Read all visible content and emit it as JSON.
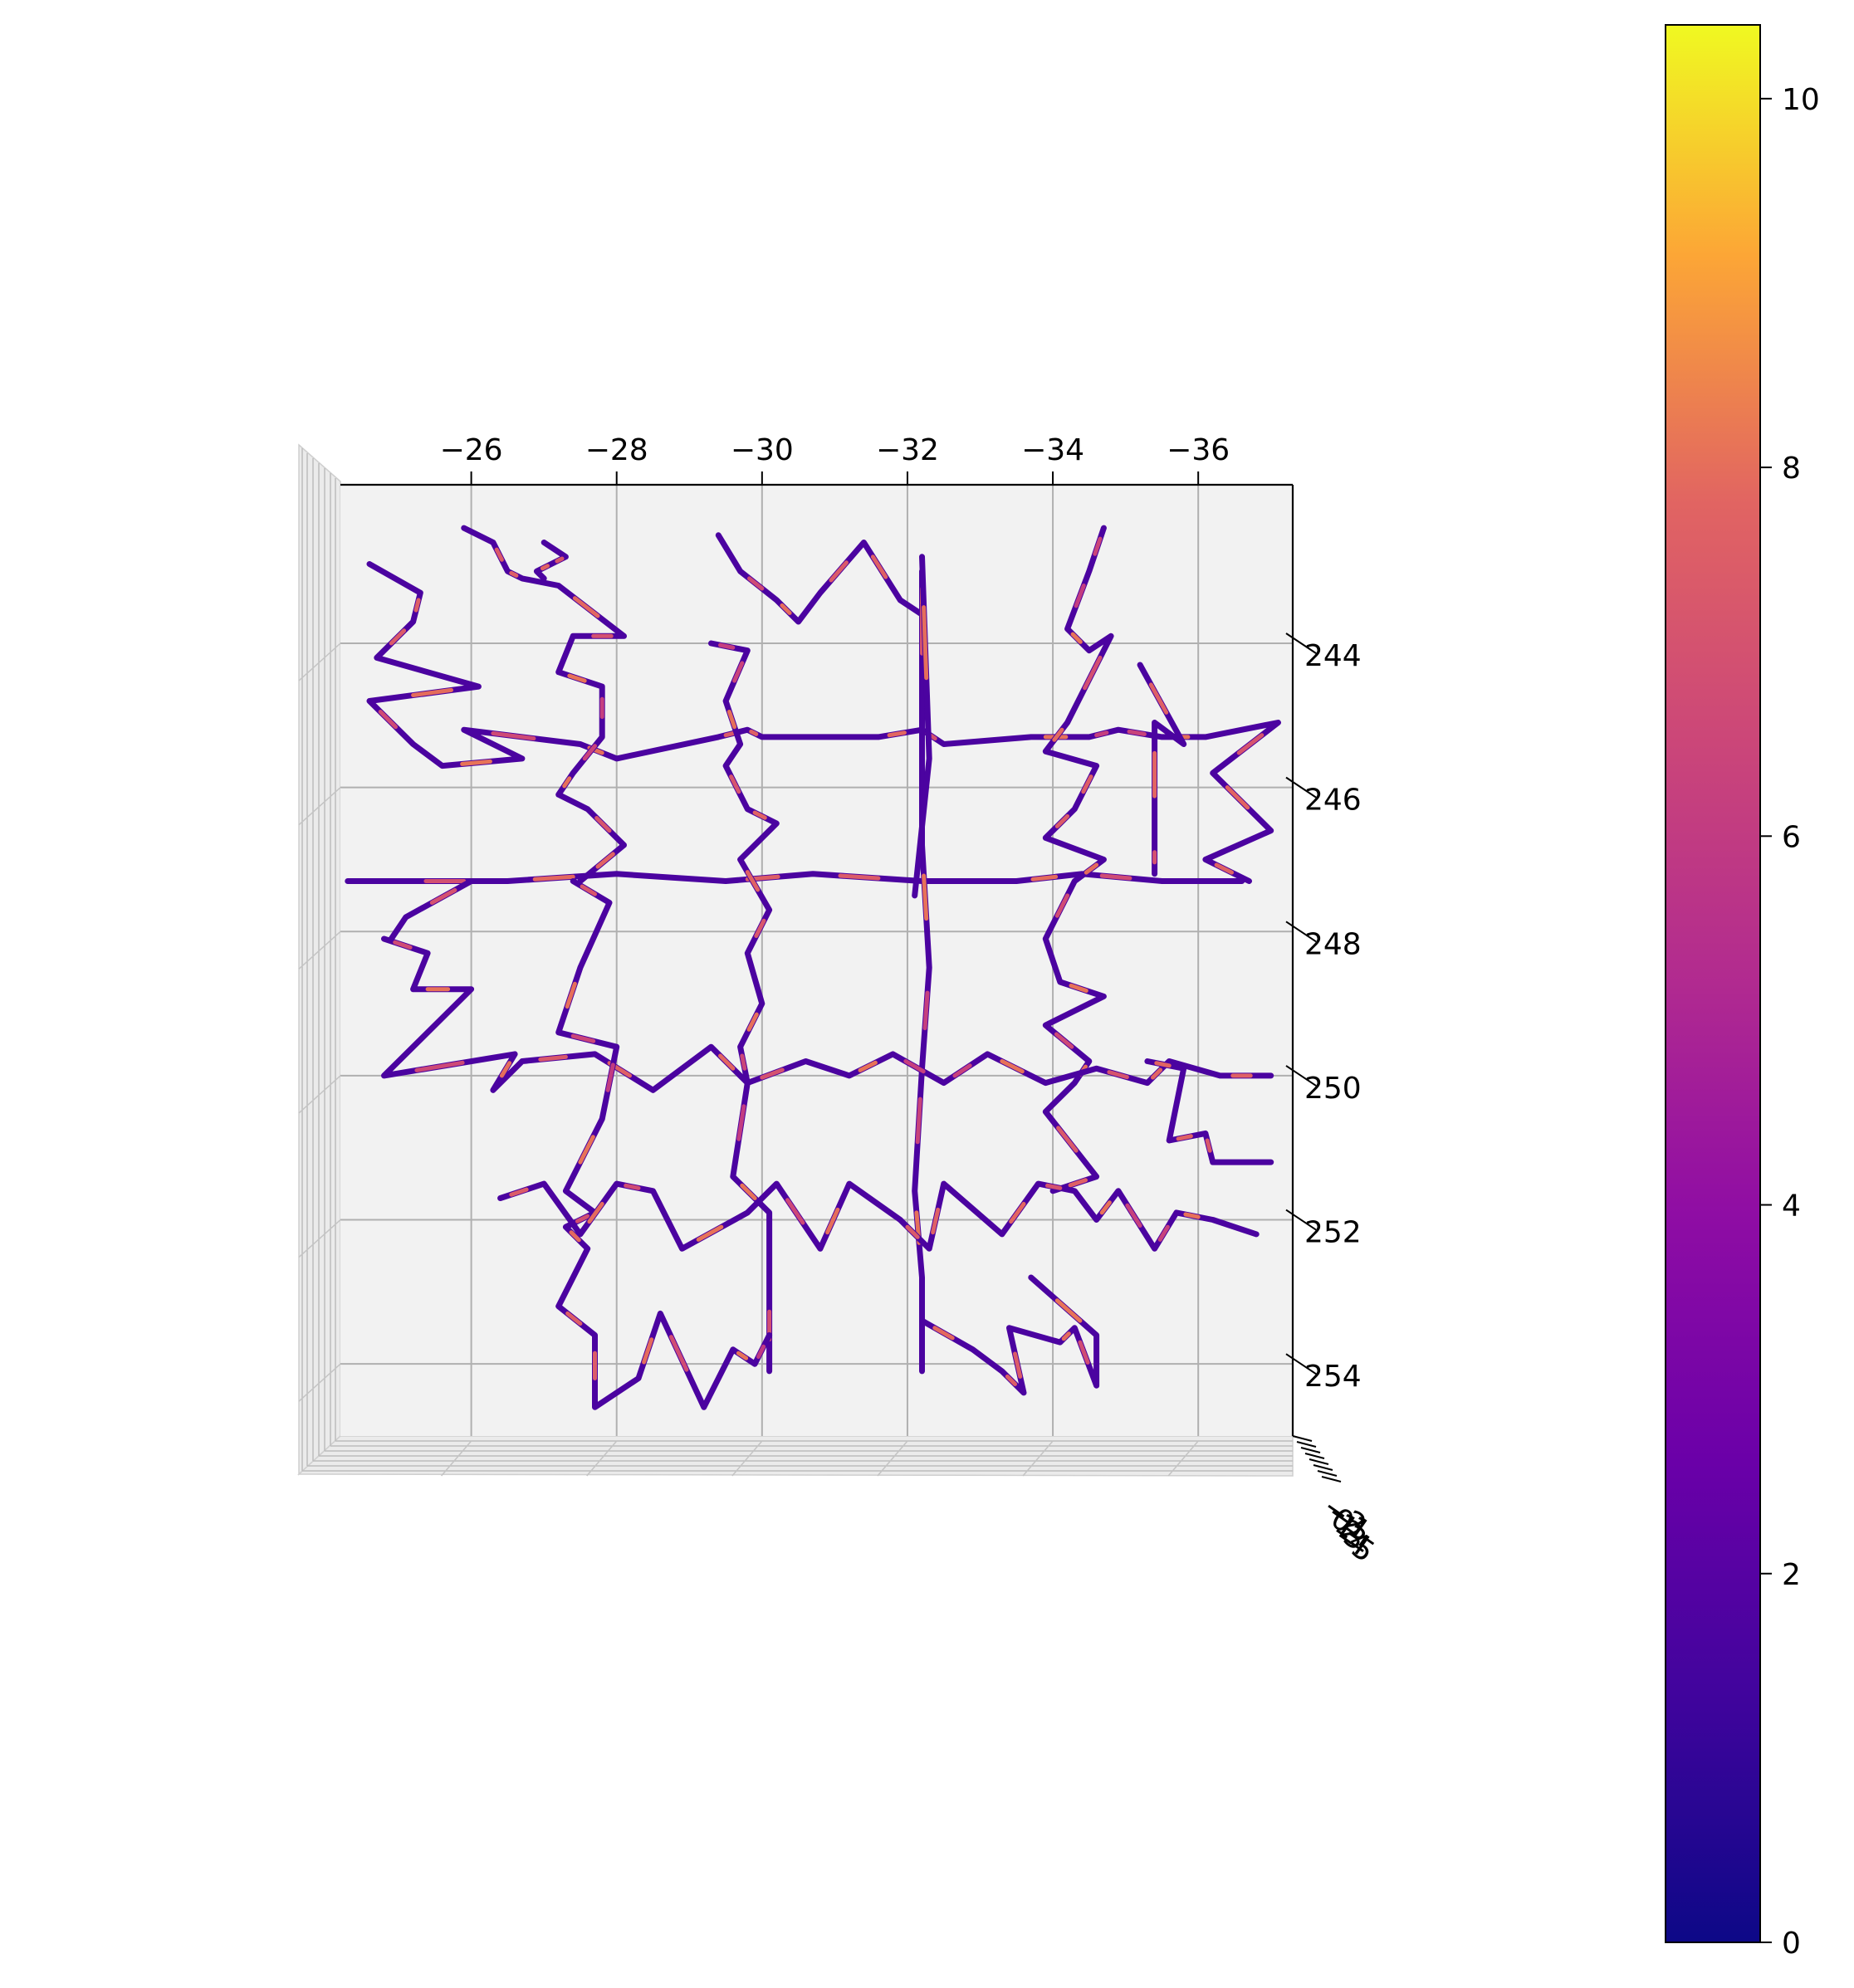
{
  "chart_data": {
    "type": "line",
    "subtype": "3d-trajectory-colored-by-value",
    "title": "",
    "xlabel": "",
    "ylabel": "",
    "zlabel": "",
    "view": "top-down",
    "x_ticks": [
      "−26",
      "−28",
      "−30",
      "−32",
      "−34",
      "−36"
    ],
    "y_ticks": [
      "244",
      "246",
      "248",
      "250",
      "252",
      "254"
    ],
    "z_ticks": [
      "−2",
      "−1",
      "0",
      "1",
      "2",
      "3",
      "4",
      "5"
    ],
    "xlim": [
      -24.2,
      -37.3
    ],
    "ylim": [
      241.8,
      255.0
    ],
    "grid": true,
    "colormap": "plasma",
    "colorbar": {
      "min": 0,
      "max": 10.4,
      "ticks": [
        "0",
        "2",
        "4",
        "6",
        "8",
        "10"
      ],
      "location": "right"
    },
    "series": [
      {
        "values": [
          [
            -24.6,
            242.9
          ],
          [
            -25.3,
            243.3
          ],
          [
            -25.2,
            243.7
          ],
          [
            -24.7,
            244.2
          ],
          [
            -26.1,
            244.6
          ],
          [
            -24.6,
            244.8
          ],
          [
            -25.2,
            245.4
          ],
          [
            -25.6,
            245.7
          ],
          [
            -26.7,
            245.6
          ],
          [
            -25.9,
            245.2
          ],
          [
            -27.5,
            245.4
          ],
          [
            -28.0,
            245.6
          ],
          [
            -29.4,
            245.3
          ],
          [
            -29.8,
            245.2
          ],
          [
            -30.0,
            245.3
          ],
          [
            -31.6,
            245.3
          ],
          [
            -32.2,
            245.2
          ],
          [
            -32.5,
            245.4
          ],
          [
            -33.7,
            245.3
          ],
          [
            -34.5,
            245.3
          ],
          [
            -34.9,
            245.2
          ],
          [
            -35.5,
            245.3
          ],
          [
            -36.1,
            245.3
          ],
          [
            -37.1,
            245.1
          ],
          [
            -36.2,
            245.8
          ],
          [
            -37.0,
            246.6
          ],
          [
            -36.1,
            247.0
          ],
          [
            -36.7,
            247.3
          ]
        ]
      },
      {
        "values": [
          [
            -25.9,
            242.4
          ],
          [
            -26.3,
            242.6
          ],
          [
            -26.5,
            243.0
          ],
          [
            -26.7,
            243.1
          ],
          [
            -27.2,
            243.2
          ],
          [
            -28.1,
            243.9
          ],
          [
            -27.4,
            243.9
          ],
          [
            -27.2,
            244.4
          ],
          [
            -27.8,
            244.6
          ],
          [
            -27.8,
            245.3
          ],
          [
            -27.4,
            245.8
          ],
          [
            -27.2,
            246.1
          ],
          [
            -27.6,
            246.3
          ],
          [
            -28.1,
            246.8
          ],
          [
            -27.5,
            247.3
          ]
        ]
      },
      {
        "values": [
          [
            -27.0,
            242.6
          ],
          [
            -27.3,
            242.8
          ],
          [
            -27.1,
            242.9
          ],
          [
            -26.9,
            243.0
          ],
          [
            -27.0,
            243.1
          ]
        ]
      },
      {
        "values": [
          [
            -24.3,
            247.3
          ],
          [
            -25.0,
            247.3
          ],
          [
            -26.5,
            247.3
          ],
          [
            -28.0,
            247.2
          ],
          [
            -29.5,
            247.3
          ],
          [
            -30.7,
            247.2
          ],
          [
            -32.2,
            247.3
          ],
          [
            -33.5,
            247.3
          ],
          [
            -34.4,
            247.2
          ],
          [
            -35.5,
            247.3
          ],
          [
            -36.6,
            247.3
          ]
        ]
      },
      {
        "values": [
          [
            -29.4,
            242.5
          ],
          [
            -29.7,
            243.0
          ],
          [
            -30.2,
            243.4
          ],
          [
            -30.5,
            243.7
          ],
          [
            -30.8,
            243.3
          ],
          [
            -31.4,
            242.6
          ],
          [
            -31.9,
            243.4
          ],
          [
            -32.2,
            243.6
          ],
          [
            -32.2,
            243.0
          ],
          [
            -32.2,
            244.9
          ],
          [
            -32.2,
            246.8
          ],
          [
            -32.3,
            248.5
          ],
          [
            -32.2,
            249.9
          ],
          [
            -32.1,
            251.6
          ],
          [
            -32.2,
            252.8
          ],
          [
            -32.2,
            254.1
          ]
        ]
      },
      {
        "values": [
          [
            -29.3,
            244.0
          ],
          [
            -29.8,
            244.1
          ],
          [
            -29.5,
            244.8
          ],
          [
            -29.7,
            245.4
          ],
          [
            -29.5,
            245.7
          ],
          [
            -29.8,
            246.3
          ],
          [
            -30.2,
            246.5
          ],
          [
            -29.7,
            247.0
          ],
          [
            -30.1,
            247.7
          ],
          [
            -29.8,
            248.3
          ],
          [
            -30.0,
            249.0
          ],
          [
            -29.7,
            249.6
          ],
          [
            -29.8,
            250.1
          ],
          [
            -29.6,
            251.4
          ],
          [
            -30.1,
            251.9
          ],
          [
            -30.1,
            253.0
          ],
          [
            -30.1,
            254.1
          ]
        ]
      },
      {
        "values": [
          [
            -34.7,
            242.4
          ],
          [
            -34.5,
            243.0
          ],
          [
            -34.2,
            243.8
          ],
          [
            -34.5,
            244.1
          ],
          [
            -34.8,
            243.9
          ],
          [
            -34.2,
            245.1
          ],
          [
            -33.9,
            245.5
          ],
          [
            -34.6,
            245.7
          ],
          [
            -34.3,
            246.3
          ],
          [
            -33.9,
            246.7
          ],
          [
            -34.7,
            247.0
          ],
          [
            -34.3,
            247.3
          ],
          [
            -33.9,
            248.1
          ],
          [
            -34.1,
            248.7
          ],
          [
            -34.7,
            248.9
          ],
          [
            -33.9,
            249.3
          ],
          [
            -34.5,
            249.8
          ],
          [
            -34.3,
            250.1
          ],
          [
            -33.9,
            250.5
          ],
          [
            -34.6,
            251.4
          ],
          [
            -34.0,
            251.6
          ]
        ]
      },
      {
        "values": [
          [
            -24.8,
            248.1
          ],
          [
            -25.4,
            248.3
          ],
          [
            -25.2,
            248.8
          ],
          [
            -26.0,
            248.8
          ],
          [
            -24.8,
            250.0
          ],
          [
            -26.6,
            249.7
          ],
          [
            -26.3,
            250.2
          ],
          [
            -26.7,
            249.8
          ],
          [
            -27.7,
            249.7
          ],
          [
            -28.5,
            250.2
          ],
          [
            -29.3,
            249.6
          ],
          [
            -29.8,
            250.1
          ],
          [
            -30.6,
            249.8
          ],
          [
            -31.2,
            250.0
          ],
          [
            -31.8,
            249.7
          ],
          [
            -32.5,
            250.1
          ],
          [
            -33.1,
            249.7
          ],
          [
            -33.9,
            250.1
          ],
          [
            -34.6,
            249.9
          ],
          [
            -35.3,
            250.1
          ],
          [
            -35.6,
            249.8
          ],
          [
            -36.3,
            250.0
          ],
          [
            -37.0,
            250.0
          ]
        ]
      },
      {
        "values": [
          [
            -26.0,
            247.3
          ],
          [
            -25.1,
            247.8
          ],
          [
            -24.9,
            248.1
          ]
        ]
      },
      {
        "values": [
          [
            -27.4,
            247.3
          ],
          [
            -27.9,
            247.6
          ],
          [
            -27.5,
            248.5
          ],
          [
            -27.2,
            249.4
          ],
          [
            -28.0,
            249.6
          ],
          [
            -27.8,
            250.6
          ],
          [
            -27.3,
            251.6
          ],
          [
            -27.7,
            251.9
          ],
          [
            -27.3,
            252.1
          ],
          [
            -27.6,
            252.4
          ],
          [
            -27.2,
            253.2
          ],
          [
            -27.7,
            253.6
          ],
          [
            -27.7,
            254.6
          ],
          [
            -28.3,
            254.2
          ],
          [
            -28.6,
            253.3
          ],
          [
            -29.2,
            254.6
          ],
          [
            -29.6,
            253.8
          ],
          [
            -29.9,
            254.0
          ],
          [
            -30.1,
            253.6
          ]
        ]
      },
      {
        "values": [
          [
            -26.4,
            251.7
          ],
          [
            -27.0,
            251.5
          ],
          [
            -27.5,
            252.2
          ],
          [
            -28.0,
            251.5
          ],
          [
            -28.5,
            251.6
          ],
          [
            -28.9,
            252.4
          ],
          [
            -29.8,
            251.9
          ],
          [
            -30.2,
            251.5
          ],
          [
            -30.8,
            252.4
          ],
          [
            -31.2,
            251.5
          ],
          [
            -31.9,
            252.0
          ],
          [
            -32.3,
            252.4
          ],
          [
            -32.5,
            251.5
          ],
          [
            -33.3,
            252.2
          ],
          [
            -33.8,
            251.5
          ],
          [
            -34.3,
            251.6
          ],
          [
            -34.6,
            252.0
          ],
          [
            -34.9,
            251.6
          ],
          [
            -35.4,
            252.4
          ],
          [
            -35.7,
            251.9
          ],
          [
            -36.2,
            252.0
          ],
          [
            -36.8,
            252.2
          ]
        ]
      },
      {
        "values": [
          [
            -35.2,
            244.3
          ],
          [
            -35.8,
            245.4
          ],
          [
            -35.4,
            245.1
          ],
          [
            -35.4,
            246.8
          ],
          [
            -35.4,
            247.2
          ]
        ]
      },
      {
        "values": [
          [
            -35.3,
            249.8
          ],
          [
            -35.8,
            249.9
          ],
          [
            -35.6,
            250.9
          ],
          [
            -36.1,
            250.8
          ],
          [
            -36.2,
            251.2
          ],
          [
            -37.0,
            251.2
          ]
        ]
      },
      {
        "values": [
          [
            -32.2,
            253.4
          ],
          [
            -32.9,
            253.8
          ],
          [
            -33.3,
            254.1
          ],
          [
            -33.6,
            254.4
          ],
          [
            -33.4,
            253.5
          ],
          [
            -34.1,
            253.7
          ],
          [
            -34.3,
            253.5
          ],
          [
            -34.6,
            254.3
          ],
          [
            -34.6,
            253.6
          ],
          [
            -33.7,
            252.8
          ]
        ]
      },
      {
        "values": [
          [
            -32.2,
            242.8
          ],
          [
            -32.3,
            245.6
          ],
          [
            -32.1,
            247.5
          ]
        ]
      }
    ]
  }
}
